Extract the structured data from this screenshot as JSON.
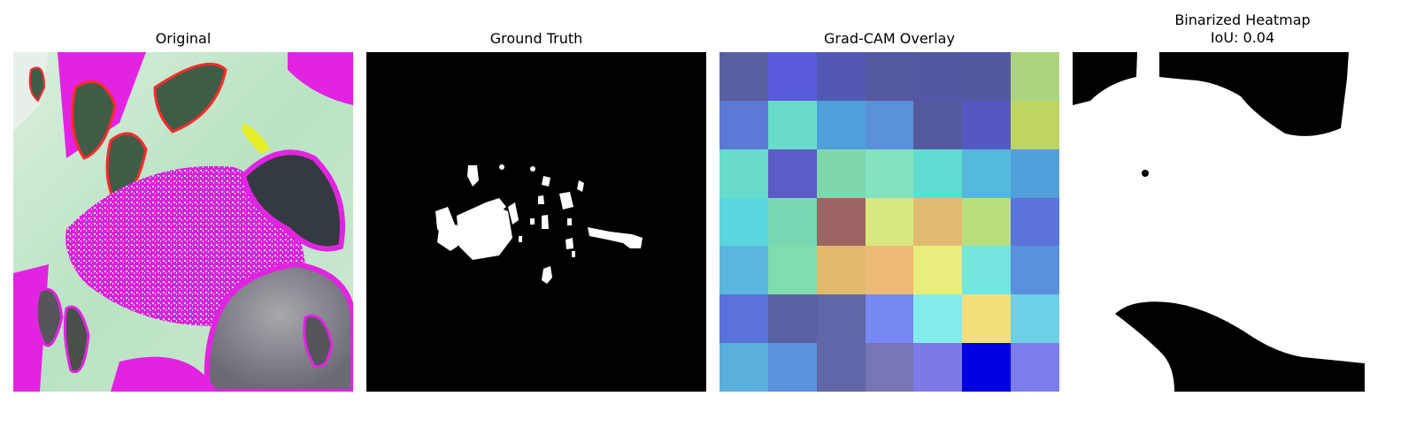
{
  "panels": {
    "original": {
      "title": "Original"
    },
    "ground_truth": {
      "title": "Ground Truth"
    },
    "gradcam": {
      "title": "Grad-CAM Overlay",
      "grid": [
        [
          "#5a5fa0",
          "#585cdc",
          "#5358b6",
          "#5559a0",
          "#5457a4",
          "#54599f",
          "#acd47e"
        ],
        [
          "#5a7ad6",
          "#68dccb",
          "#4f9fda",
          "#5a8fda",
          "#555a9e",
          "#5558c4",
          "#bed562"
        ],
        [
          "#67dccc",
          "#5d5cc7",
          "#7ed7ad",
          "#84e2be",
          "#61dcd0",
          "#55b9dc",
          "#51a0d9"
        ],
        [
          "#5ad5dc",
          "#79d8b3",
          "#9e6464",
          "#d8e77e",
          "#e2bb72",
          "#b9de7e",
          "#5a73dd"
        ],
        [
          "#5ab6de",
          "#7edcae",
          "#e0b96a",
          "#eeba78",
          "#e8ee7a",
          "#73e6e0",
          "#5a90de"
        ],
        [
          "#5a72dc",
          "#5a62a4",
          "#6066a6",
          "#7688f3",
          "#85ecec",
          "#f3de78",
          "#6dd0e8"
        ],
        [
          "#5ab0dc",
          "#5a92df",
          "#6066a6",
          "#7676b4",
          "#7d79e8",
          "#0000e0",
          "#7d7cef"
        ]
      ]
    },
    "binarized": {
      "title": "Binarized Heatmap",
      "subtitle": "IoU: 0.04"
    }
  }
}
